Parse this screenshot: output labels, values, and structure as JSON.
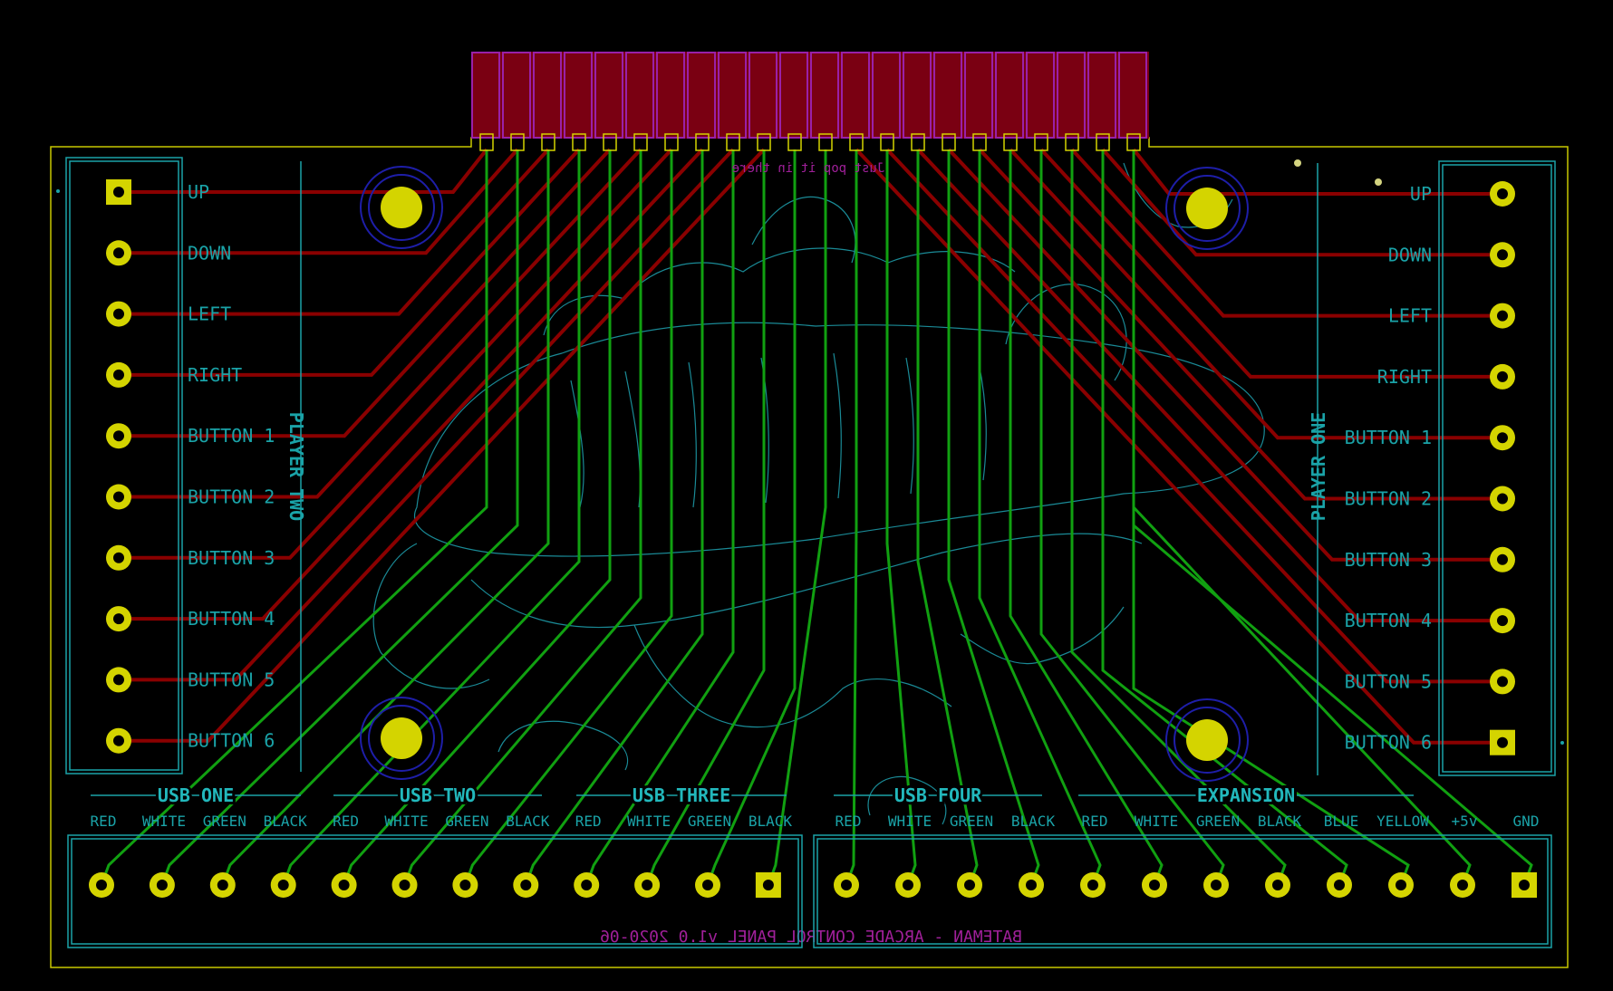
{
  "board": {
    "title": "BATEMAN - ARCADE CONTROL PANEL v1.0 2020-06",
    "pin_note": "Just pop it in there",
    "colors": {
      "background": "#000000",
      "outline": "#c8c800",
      "silk": "#1aa3a8",
      "silk_bright": "#22b8bc",
      "back_silk": "#a0209a",
      "pad": "#d4d400",
      "pad_center": "#000000",
      "trace_front": "#8a0000",
      "trace_back": "#11a011",
      "edge_fill": "#7a0012",
      "edge_stripe": "#9a20a8",
      "mount_ring": "#1e1ea8",
      "drawing": "#1a8a96"
    }
  },
  "player_two": {
    "label": "PLAYER TWO",
    "pins": [
      "UP",
      "DOWN",
      "LEFT",
      "RIGHT",
      "BUTTON 1",
      "BUTTON 2",
      "BUTTON 3",
      "BUTTON 4",
      "BUTTON 5",
      "BUTTON 6"
    ]
  },
  "player_one": {
    "label": "PLAYER ONE",
    "pins": [
      "UP",
      "DOWN",
      "LEFT",
      "RIGHT",
      "BUTTON 1",
      "BUTTON 2",
      "BUTTON 3",
      "BUTTON 4",
      "BUTTON 5",
      "BUTTON 6"
    ]
  },
  "bottom_groups": [
    {
      "name": "USB ONE",
      "pins": [
        "RED",
        "WHITE",
        "GREEN",
        "BLACK"
      ]
    },
    {
      "name": "USB TWO",
      "pins": [
        "RED",
        "WHITE",
        "GREEN",
        "BLACK"
      ]
    },
    {
      "name": "USB THREE",
      "pins": [
        "RED",
        "WHITE",
        "GREEN",
        "BLACK"
      ]
    },
    {
      "name": "USB FOUR",
      "pins": [
        "RED",
        "WHITE",
        "GREEN",
        "BLACK"
      ]
    },
    {
      "name": "EXPANSION",
      "pins": [
        "RED",
        "WHITE",
        "GREEN",
        "BLACK",
        "BLUE",
        "YELLOW",
        "+5v",
        "GND"
      ]
    }
  ],
  "edge_connector": {
    "finger_count": 22
  }
}
